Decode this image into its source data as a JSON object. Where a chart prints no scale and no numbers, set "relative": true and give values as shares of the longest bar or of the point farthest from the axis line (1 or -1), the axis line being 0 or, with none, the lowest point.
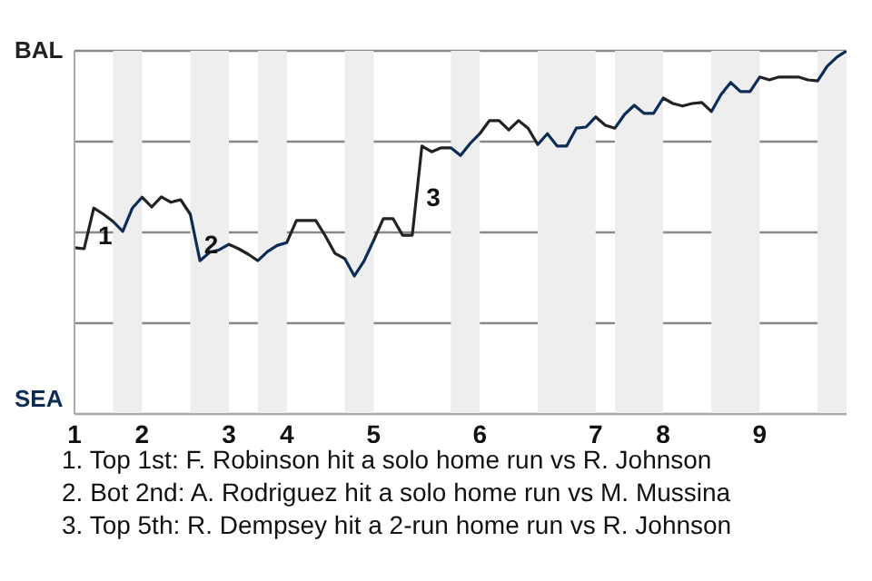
{
  "chart_data": {
    "type": "line",
    "relative": true,
    "categories": [
      "1",
      null,
      null,
      null,
      null,
      null,
      null,
      "2",
      null,
      null,
      null,
      null,
      null,
      null,
      null,
      null,
      "3",
      null,
      null,
      null,
      null,
      null,
      "4",
      null,
      null,
      null,
      null,
      null,
      null,
      null,
      null,
      "5",
      null,
      null,
      null,
      null,
      null,
      null,
      null,
      null,
      null,
      null,
      "6",
      null,
      null,
      null,
      null,
      null,
      null,
      null,
      null,
      null,
      null,
      null,
      "7",
      null,
      null,
      null,
      null,
      null,
      null,
      "8",
      null,
      null,
      null,
      null,
      null,
      null,
      null,
      null,
      null,
      "9",
      null,
      null,
      null,
      null,
      null,
      null,
      null,
      null,
      null
    ],
    "series": [
      {
        "values": [
          0.458,
          0.455,
          0.567,
          0.55,
          0.53,
          0.503,
          0.567,
          0.597,
          0.57,
          0.598,
          0.583,
          0.59,
          0.55,
          0.422,
          0.445,
          0.452,
          0.467,
          0.455,
          0.44,
          0.422,
          0.447,
          0.464,
          0.472,
          0.533,
          0.533,
          0.533,
          0.49,
          0.442,
          0.428,
          0.38,
          0.421,
          0.478,
          0.538,
          0.538,
          0.492,
          0.492,
          0.738,
          0.722,
          0.733,
          0.733,
          0.712,
          0.745,
          0.772,
          0.808,
          0.808,
          0.782,
          0.808,
          0.787,
          0.742,
          0.772,
          0.738,
          0.738,
          0.787,
          0.79,
          0.818,
          0.795,
          0.787,
          0.825,
          0.85,
          0.828,
          0.828,
          0.87,
          0.855,
          0.848,
          0.855,
          0.858,
          0.833,
          0.88,
          0.913,
          0.888,
          0.888,
          0.928,
          0.92,
          0.928,
          0.928,
          0.928,
          0.92,
          0.917,
          0.958,
          0.983,
          1
        ],
        "colors": [
          "#222222",
          "#222222",
          "#222222",
          "#222222",
          "#0c2c56",
          "#0c2c56",
          "#0c2c56",
          "#222222",
          "#222222",
          "#222222",
          "#222222",
          "#222222",
          "#0c2c56",
          "#0c2c56",
          "#0c2c56",
          "#0c2c56",
          "#222222",
          "#222222",
          "#222222",
          "#0c2c56",
          "#0c2c56",
          "#0c2c56",
          "#222222",
          "#222222",
          "#222222",
          "#222222",
          "#222222",
          "#222222",
          "#0c2c56",
          "#0c2c56",
          "#0c2c56",
          "#222222",
          "#222222",
          "#222222",
          "#222222",
          "#222222",
          "#222222",
          "#222222",
          "#222222",
          "#0c2c56",
          "#0c2c56",
          "#0c2c56",
          "#222222",
          "#222222",
          "#222222",
          "#222222",
          "#222222",
          "#222222",
          "#0c2c56",
          "#0c2c56",
          "#0c2c56",
          "#0c2c56",
          "#0c2c56",
          "#0c2c56",
          "#222222",
          "#222222",
          "#0c2c56",
          "#0c2c56",
          "#0c2c56",
          "#0c2c56",
          "#0c2c56",
          "#222222",
          "#222222",
          "#222222",
          "#222222",
          "#222222",
          "#0c2c56",
          "#0c2c56",
          "#0c2c56",
          "#0c2c56",
          "#0c2c56",
          "#222222",
          "#222222",
          "#222222",
          "#222222",
          "#222222",
          "#222222",
          "#0c2c56",
          "#0c2c56",
          "#0c2c56",
          "#0c2c56"
        ]
      }
    ],
    "grid": "y",
    "annotations": [
      "BAL",
      "SEA",
      {
        "text": "1",
        "y": 0.567
      },
      {
        "text": "2",
        "y": 0.422
      },
      {
        "text": "3",
        "y": 0.738
      },
      "1. Top 1st: F. Robinson hit a solo home run vs R. Johnson",
      "2. Bot 2nd: A. Rodriguez hit a solo home run vs M. Mussina",
      "3. Top 5th: R. Dempsey hit a 2-run home run vs R. Johnson"
    ],
    "marker": "none"
  }
}
